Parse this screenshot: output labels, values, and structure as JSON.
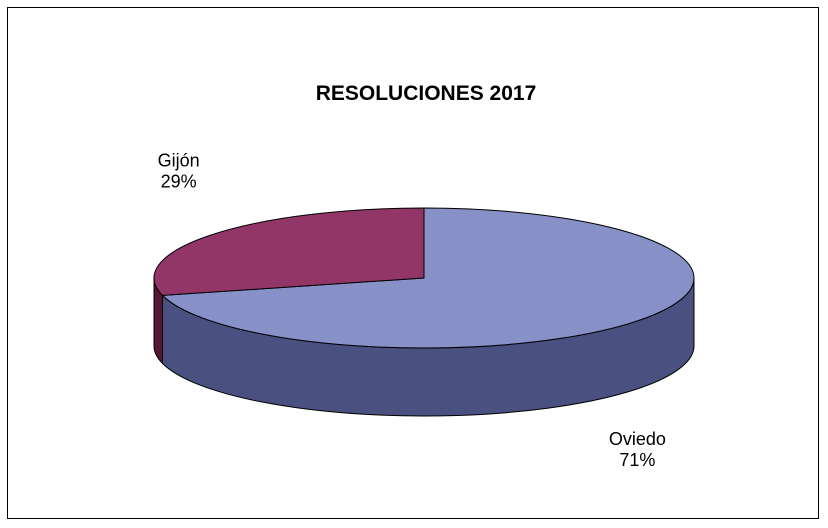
{
  "chart_data": {
    "type": "pie",
    "title": "RESOLUCIONES 2017",
    "three_d": true,
    "slices": [
      {
        "label": "Oviedo",
        "value": 71,
        "pct_label": "71%",
        "top_color": "#8890c8",
        "side_color": "#4a5080"
      },
      {
        "label": "Gijón",
        "value": 29,
        "pct_label": "29%",
        "top_color": "#923668",
        "side_color": "#561636"
      }
    ],
    "legend": "none"
  }
}
